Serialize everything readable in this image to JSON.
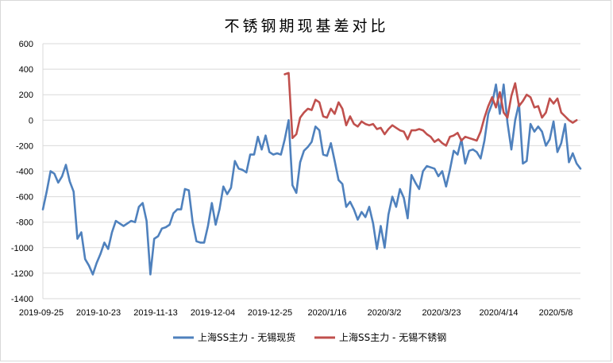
{
  "chart_data": {
    "type": "line",
    "title": "不锈钢期现基差对比",
    "xlabel": "",
    "ylabel": "",
    "ylim": [
      -1400,
      600
    ],
    "y_ticks": [
      600,
      400,
      200,
      0,
      -200,
      -400,
      -600,
      -800,
      -1000,
      -1200,
      -1400
    ],
    "x_tick_labels": [
      "2019-09-25",
      "2019-10-23",
      "2019-11-13",
      "2019-12-04",
      "2019-12-25",
      "2020/1/16",
      "2020/3/2",
      "2020/3/23",
      "2020/4/14",
      "2020/5/8"
    ],
    "grid": "horizontal",
    "legend_position": "bottom",
    "series": [
      {
        "name": "上海SS主力 - 无锡现货",
        "color": "#4f81bd",
        "values": [
          -700,
          -560,
          -400,
          -420,
          -490,
          -440,
          -350,
          -480,
          -560,
          -930,
          -880,
          -1090,
          -1140,
          -1210,
          -1120,
          -1050,
          -960,
          -1010,
          -880,
          -790,
          -810,
          -830,
          -810,
          -790,
          -800,
          -680,
          -650,
          -790,
          -1210,
          -930,
          -910,
          -850,
          -840,
          -820,
          -730,
          -700,
          -700,
          -540,
          -550,
          -800,
          -950,
          -960,
          -960,
          -830,
          -650,
          -820,
          -700,
          -520,
          -580,
          -530,
          -320,
          -380,
          -390,
          -410,
          -270,
          -270,
          -130,
          -230,
          -120,
          -250,
          -270,
          -260,
          -270,
          -150,
          0,
          -510,
          -570,
          -330,
          -240,
          -210,
          -170,
          -50,
          -80,
          -270,
          -280,
          -180,
          -320,
          -470,
          -500,
          -680,
          -640,
          -700,
          -780,
          -720,
          -760,
          -680,
          -810,
          -1010,
          -830,
          -1000,
          -740,
          -600,
          -680,
          -540,
          -610,
          -770,
          -430,
          -490,
          -540,
          -400,
          -360,
          -370,
          -380,
          -440,
          -400,
          -520,
          -390,
          -240,
          -270,
          -150,
          -340,
          -240,
          -230,
          -250,
          -300,
          -160,
          50,
          130,
          280,
          50,
          280,
          -20,
          -230,
          0,
          130,
          -340,
          -320,
          -30,
          -90,
          -50,
          -90,
          -200,
          -150,
          -10,
          -250,
          -180,
          -30,
          -330,
          -260,
          -340,
          -380
        ]
      },
      {
        "name": "上海SS主力 - 无锡不锈钢",
        "color": "#c0504d",
        "start_index": 63,
        "values": [
          360,
          370,
          -140,
          -110,
          20,
          60,
          90,
          80,
          160,
          140,
          30,
          20,
          90,
          50,
          140,
          90,
          -40,
          30,
          -30,
          -50,
          -10,
          -30,
          -40,
          -30,
          -70,
          -60,
          -110,
          -70,
          -40,
          -60,
          -80,
          -90,
          -150,
          -80,
          -80,
          -70,
          -80,
          -110,
          -130,
          -170,
          -150,
          -180,
          -200,
          -130,
          -120,
          -100,
          -160,
          -130,
          -140,
          -150,
          -160,
          -90,
          20,
          110,
          180,
          100,
          220,
          60,
          20,
          190,
          290,
          110,
          150,
          200,
          180,
          100,
          110,
          20,
          60,
          170,
          130,
          170,
          60,
          30,
          0,
          -20,
          0
        ]
      }
    ]
  }
}
